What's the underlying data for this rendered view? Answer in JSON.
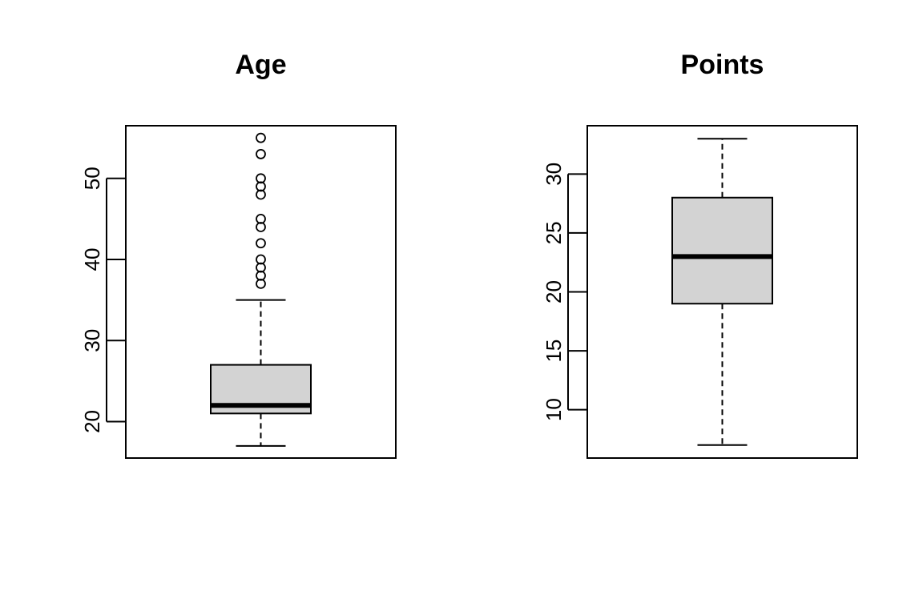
{
  "chart_data": [
    {
      "type": "boxplot",
      "title": "Age",
      "ylim": [
        15.5,
        56.5
      ],
      "yticks": [
        20,
        30,
        40,
        50
      ],
      "stats": {
        "whisker_low": 17,
        "q1": 21,
        "median": 22,
        "q3": 27,
        "whisker_high": 35
      },
      "outliers": [
        37,
        38,
        39,
        40,
        42,
        44,
        45,
        48,
        49,
        50,
        53,
        55
      ],
      "box_fill": "#d3d3d3"
    },
    {
      "type": "boxplot",
      "title": "Points",
      "ylim": [
        5.9,
        34.1
      ],
      "yticks": [
        10,
        15,
        20,
        25,
        30
      ],
      "stats": {
        "whisker_low": 7,
        "q1": 19,
        "median": 23,
        "q3": 28,
        "whisker_high": 33
      },
      "outliers": [],
      "box_fill": "#d3d3d3"
    }
  ]
}
